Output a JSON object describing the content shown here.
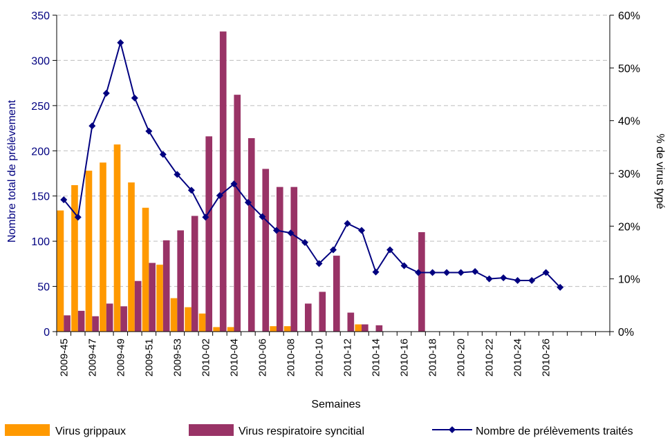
{
  "chart_data": {
    "type": "bar",
    "categories": [
      "2009-45",
      "2009-46",
      "2009-47",
      "2009-48",
      "2009-49",
      "2009-50",
      "2009-51",
      "2009-52",
      "2009-53",
      "2010-01",
      "2010-02",
      "2010-03",
      "2010-04",
      "2010-05",
      "2010-06",
      "2010-07",
      "2010-08",
      "2010-09",
      "2010-10",
      "2010-11",
      "2010-12",
      "2010-13",
      "2010-14",
      "2010-15",
      "2010-16",
      "2010-17",
      "2010-18",
      "2010-19",
      "2010-20",
      "2010-21",
      "2010-22",
      "2010-23",
      "2010-24",
      "2010-25",
      "2010-26",
      "2010-27",
      "2010-28",
      "2010-29",
      "2010-30"
    ],
    "x_tick_labels": [
      "2009-45",
      "2009-47",
      "2009-49",
      "2009-51",
      "2009-53",
      "2010-02",
      "2010-04",
      "2010-06",
      "2010-08",
      "2010-10",
      "2010-12",
      "2010-14",
      "2010-16",
      "2010-18",
      "2010-20",
      "2010-22",
      "2010-24",
      "2010-26"
    ],
    "series": [
      {
        "name": "Virus grippaux",
        "type": "bar",
        "axis": "left",
        "color": "#FF9900",
        "values": [
          134,
          162,
          178,
          187,
          207,
          165,
          137,
          74,
          37,
          27,
          20,
          5,
          5,
          0,
          0,
          6,
          6,
          0,
          0,
          0,
          0,
          8,
          0,
          0,
          0,
          0,
          0,
          0,
          0,
          0,
          0,
          0,
          0,
          0,
          0,
          0,
          0,
          0,
          0
        ]
      },
      {
        "name": "Virus respiratoire syncitial",
        "type": "bar",
        "axis": "left",
        "color": "#993366",
        "values": [
          18,
          23,
          17,
          31,
          28,
          56,
          76,
          101,
          112,
          128,
          216,
          332,
          262,
          214,
          180,
          160,
          160,
          31,
          44,
          84,
          21,
          8,
          7,
          0,
          0,
          110,
          0,
          0,
          0,
          0,
          0,
          0,
          0,
          0,
          0,
          0,
          0,
          0,
          0
        ]
      },
      {
        "name": "Nombre de prélèvements traités",
        "type": "line",
        "axis": "right",
        "color": "#000080",
        "values": [
          25,
          21.7,
          39,
          45.2,
          54.8,
          44.3,
          38,
          33.6,
          29.8,
          26.8,
          21.7,
          25.8,
          28,
          24.5,
          21.8,
          19.2,
          18.7,
          16.9,
          12.9,
          15.5,
          20.5,
          19.2,
          11.3,
          15.5,
          12.5,
          11.2,
          11.2,
          11.2,
          11.2,
          11.4,
          10,
          10.2,
          9.7,
          9.7,
          11.2,
          8.4,
          null,
          null,
          null
        ]
      }
    ],
    "xlabel": "Semaines",
    "ylabel": "Nombre total de prélèvement",
    "y2label": "% de virus typé",
    "ylim": [
      0,
      350
    ],
    "y2lim": [
      0,
      60
    ],
    "y_ticks": [
      0,
      50,
      100,
      150,
      200,
      250,
      300,
      350
    ],
    "y2_ticks": [
      "0%",
      "10%",
      "20%",
      "30%",
      "40%",
      "50%",
      "60%"
    ],
    "grid": "horizontal dashed",
    "legend_position": "bottom"
  }
}
